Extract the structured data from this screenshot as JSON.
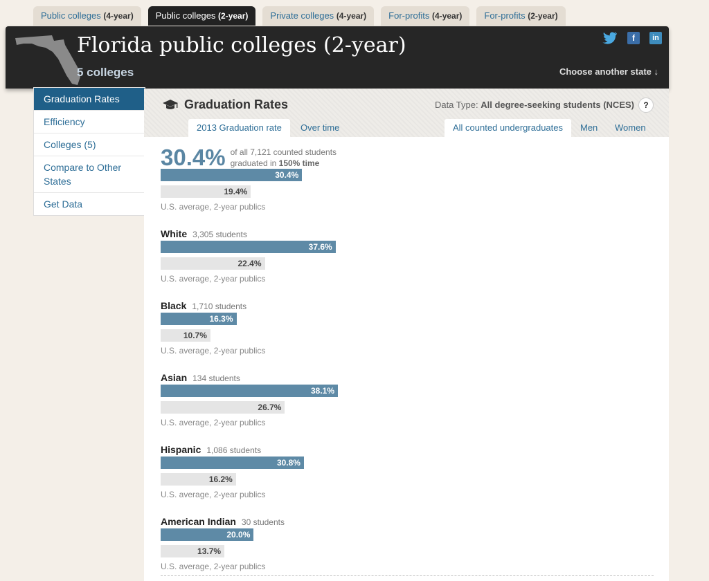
{
  "tabs": [
    {
      "label": "Public colleges",
      "suffix": "(4-year)"
    },
    {
      "label": "Public colleges",
      "suffix": "(2-year)"
    },
    {
      "label": "Private colleges",
      "suffix": "(4-year)"
    },
    {
      "label": "For-profits",
      "suffix": "(4-year)"
    },
    {
      "label": "For-profits",
      "suffix": "(2-year)"
    }
  ],
  "header": {
    "title": "Florida public colleges (2-year)",
    "subtitle": "5 colleges",
    "choose_state": "Choose another state ↓",
    "social": {
      "twitter": "twitter-icon",
      "facebook": "f",
      "linkedin": "in"
    }
  },
  "sidebar": {
    "items": [
      {
        "label": "Graduation Rates"
      },
      {
        "label": "Efficiency"
      },
      {
        "label": "Colleges (5)"
      },
      {
        "label": "Compare to Other States"
      },
      {
        "label": "Get Data"
      }
    ]
  },
  "panel": {
    "title": "Graduation Rates",
    "datatype_label": "Data Type:",
    "datatype_value": "All degree-seeking students (NCES)",
    "help": "?",
    "tabs_left": [
      "2013 Graduation rate",
      "Over time"
    ],
    "tabs_right": [
      "All counted undergraduates",
      "Men",
      "Women"
    ]
  },
  "overall": {
    "pct": "30.4%",
    "desc_line1": "of all 7,121 counted students",
    "desc_line2_prefix": "graduated in",
    "desc_line2_bold": "150% time",
    "state_value": 30.4,
    "us_value": 19.4,
    "state_label": "30.4%",
    "us_label": "19.4%",
    "us_caption": "U.S. average, 2-year publics"
  },
  "groups": [
    {
      "name": "White",
      "count": "3,305 students",
      "state_value": 37.6,
      "us_value": 22.4,
      "state_label": "37.6%",
      "us_label": "22.4%",
      "us_caption": "U.S. average, 2-year publics"
    },
    {
      "name": "Black",
      "count": "1,710 students",
      "state_value": 16.3,
      "us_value": 10.7,
      "state_label": "16.3%",
      "us_label": "10.7%",
      "us_caption": "U.S. average, 2-year publics"
    },
    {
      "name": "Asian",
      "count": "134 students",
      "state_value": 38.1,
      "us_value": 26.7,
      "state_label": "38.1%",
      "us_label": "26.7%",
      "us_caption": "U.S. average, 2-year publics"
    },
    {
      "name": "Hispanic",
      "count": "1,086 students",
      "state_value": 30.8,
      "us_value": 16.2,
      "state_label": "30.8%",
      "us_label": "16.2%",
      "us_caption": "U.S. average, 2-year publics"
    },
    {
      "name": "American Indian",
      "count": "30 students",
      "state_value": 20.0,
      "us_value": 13.7,
      "state_label": "20.0%",
      "us_label": "13.7%",
      "us_caption": "U.S. average, 2-year publics"
    }
  ],
  "colors": {
    "state_bar": "#5e8aa6",
    "us_bar": "#e5e5e5",
    "active_tab": "#222222",
    "link": "#2e6e97"
  }
}
